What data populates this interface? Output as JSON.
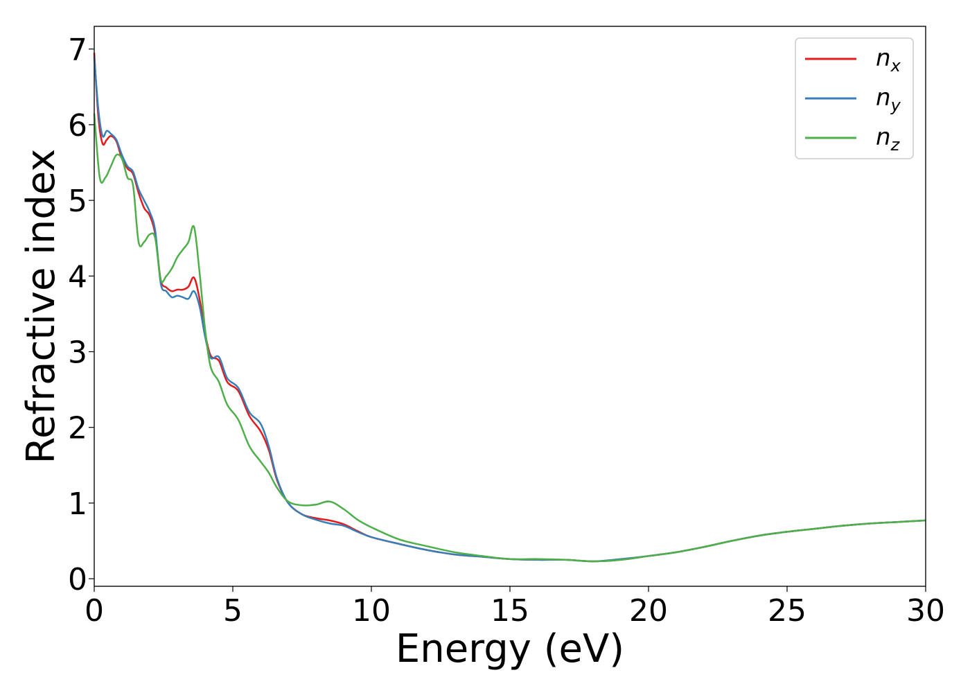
{
  "chart_data": {
    "type": "line",
    "title": "",
    "xlabel": "Energy (eV)",
    "ylabel": "Refractive index",
    "xlim": [
      0,
      30
    ],
    "ylim": [
      -0.1,
      7.3
    ],
    "xticks": [
      0,
      5,
      10,
      15,
      20,
      25,
      30
    ],
    "yticks": [
      0,
      1,
      2,
      3,
      4,
      5,
      6,
      7
    ],
    "grid": false,
    "legend_position": "top-right",
    "series": [
      {
        "name": "n",
        "subscript": "x",
        "color": "#e41a1c",
        "points": [
          [
            0,
            6.95
          ],
          [
            0.15,
            6.1
          ],
          [
            0.3,
            5.75
          ],
          [
            0.45,
            5.8
          ],
          [
            0.6,
            5.85
          ],
          [
            0.8,
            5.78
          ],
          [
            1.0,
            5.55
          ],
          [
            1.2,
            5.42
          ],
          [
            1.4,
            5.35
          ],
          [
            1.6,
            5.1
          ],
          [
            1.8,
            4.9
          ],
          [
            2.0,
            4.8
          ],
          [
            2.2,
            4.55
          ],
          [
            2.4,
            3.95
          ],
          [
            2.6,
            3.85
          ],
          [
            2.8,
            3.8
          ],
          [
            3.0,
            3.82
          ],
          [
            3.2,
            3.82
          ],
          [
            3.4,
            3.86
          ],
          [
            3.6,
            3.98
          ],
          [
            3.8,
            3.7
          ],
          [
            4.0,
            3.25
          ],
          [
            4.2,
            2.95
          ],
          [
            4.5,
            2.88
          ],
          [
            4.8,
            2.6
          ],
          [
            5.2,
            2.48
          ],
          [
            5.6,
            2.15
          ],
          [
            6.0,
            1.95
          ],
          [
            6.3,
            1.7
          ],
          [
            6.6,
            1.3
          ],
          [
            7.0,
            1.0
          ],
          [
            7.5,
            0.85
          ],
          [
            8.0,
            0.8
          ],
          [
            8.5,
            0.77
          ],
          [
            9.0,
            0.72
          ],
          [
            9.5,
            0.63
          ],
          [
            10,
            0.55
          ],
          [
            11,
            0.46
          ],
          [
            12,
            0.38
          ],
          [
            13,
            0.32
          ],
          [
            14,
            0.29
          ],
          [
            15,
            0.26
          ],
          [
            16,
            0.25
          ],
          [
            17,
            0.25
          ],
          [
            18,
            0.23
          ],
          [
            19,
            0.25
          ],
          [
            20,
            0.3
          ],
          [
            21,
            0.35
          ],
          [
            22,
            0.42
          ],
          [
            23,
            0.5
          ],
          [
            24,
            0.57
          ],
          [
            25,
            0.62
          ],
          [
            26,
            0.66
          ],
          [
            27,
            0.7
          ],
          [
            28,
            0.73
          ],
          [
            29,
            0.75
          ],
          [
            30,
            0.77
          ]
        ]
      },
      {
        "name": "n",
        "subscript": "y",
        "color": "#377eb8",
        "points": [
          [
            0,
            6.9
          ],
          [
            0.15,
            6.2
          ],
          [
            0.3,
            5.85
          ],
          [
            0.45,
            5.92
          ],
          [
            0.6,
            5.88
          ],
          [
            0.8,
            5.8
          ],
          [
            1.0,
            5.6
          ],
          [
            1.2,
            5.45
          ],
          [
            1.4,
            5.38
          ],
          [
            1.6,
            5.15
          ],
          [
            1.8,
            5.0
          ],
          [
            2.0,
            4.85
          ],
          [
            2.2,
            4.6
          ],
          [
            2.4,
            3.9
          ],
          [
            2.6,
            3.8
          ],
          [
            2.8,
            3.72
          ],
          [
            3.0,
            3.74
          ],
          [
            3.2,
            3.72
          ],
          [
            3.4,
            3.7
          ],
          [
            3.6,
            3.8
          ],
          [
            3.8,
            3.6
          ],
          [
            4.0,
            3.2
          ],
          [
            4.2,
            2.92
          ],
          [
            4.5,
            2.93
          ],
          [
            4.8,
            2.65
          ],
          [
            5.2,
            2.52
          ],
          [
            5.6,
            2.2
          ],
          [
            6.0,
            2.05
          ],
          [
            6.3,
            1.75
          ],
          [
            6.6,
            1.32
          ],
          [
            7.0,
            1.0
          ],
          [
            7.5,
            0.85
          ],
          [
            8.0,
            0.78
          ],
          [
            8.5,
            0.73
          ],
          [
            9.0,
            0.7
          ],
          [
            9.5,
            0.62
          ],
          [
            10,
            0.55
          ],
          [
            11,
            0.46
          ],
          [
            12,
            0.38
          ],
          [
            13,
            0.32
          ],
          [
            14,
            0.29
          ],
          [
            15,
            0.26
          ],
          [
            16,
            0.25
          ],
          [
            17,
            0.25
          ],
          [
            18,
            0.23
          ],
          [
            19,
            0.26
          ],
          [
            20,
            0.3
          ],
          [
            21,
            0.35
          ],
          [
            22,
            0.42
          ],
          [
            23,
            0.5
          ],
          [
            24,
            0.57
          ],
          [
            25,
            0.62
          ],
          [
            26,
            0.66
          ],
          [
            27,
            0.7
          ],
          [
            28,
            0.73
          ],
          [
            29,
            0.75
          ],
          [
            30,
            0.77
          ]
        ]
      },
      {
        "name": "n",
        "subscript": "z",
        "color": "#4daf4a",
        "points": [
          [
            0,
            6.15
          ],
          [
            0.2,
            5.3
          ],
          [
            0.4,
            5.3
          ],
          [
            0.6,
            5.45
          ],
          [
            0.8,
            5.6
          ],
          [
            1.0,
            5.55
          ],
          [
            1.2,
            5.3
          ],
          [
            1.4,
            5.2
          ],
          [
            1.6,
            4.45
          ],
          [
            1.8,
            4.45
          ],
          [
            2.0,
            4.55
          ],
          [
            2.2,
            4.5
          ],
          [
            2.4,
            3.95
          ],
          [
            2.6,
            4.0
          ],
          [
            2.8,
            4.1
          ],
          [
            3.0,
            4.25
          ],
          [
            3.2,
            4.35
          ],
          [
            3.4,
            4.45
          ],
          [
            3.6,
            4.65
          ],
          [
            3.8,
            4.05
          ],
          [
            4.0,
            3.3
          ],
          [
            4.2,
            2.8
          ],
          [
            4.5,
            2.6
          ],
          [
            4.8,
            2.3
          ],
          [
            5.2,
            2.1
          ],
          [
            5.6,
            1.75
          ],
          [
            6.0,
            1.55
          ],
          [
            6.3,
            1.4
          ],
          [
            6.6,
            1.2
          ],
          [
            7.0,
            1.02
          ],
          [
            7.5,
            0.97
          ],
          [
            8.0,
            0.98
          ],
          [
            8.5,
            1.02
          ],
          [
            9.0,
            0.92
          ],
          [
            9.5,
            0.78
          ],
          [
            10,
            0.68
          ],
          [
            11,
            0.52
          ],
          [
            12,
            0.43
          ],
          [
            13,
            0.35
          ],
          [
            14,
            0.3
          ],
          [
            15,
            0.26
          ],
          [
            16,
            0.26
          ],
          [
            17,
            0.25
          ],
          [
            18,
            0.23
          ],
          [
            19,
            0.25
          ],
          [
            20,
            0.3
          ],
          [
            21,
            0.35
          ],
          [
            22,
            0.42
          ],
          [
            23,
            0.5
          ],
          [
            24,
            0.57
          ],
          [
            25,
            0.62
          ],
          [
            26,
            0.66
          ],
          [
            27,
            0.7
          ],
          [
            28,
            0.73
          ],
          [
            29,
            0.75
          ],
          [
            30,
            0.77
          ]
        ]
      }
    ]
  }
}
